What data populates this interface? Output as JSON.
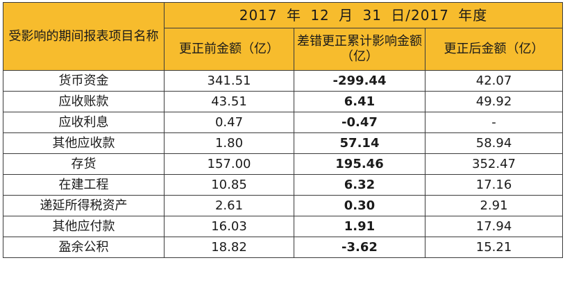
{
  "table": {
    "period_header": "2017 年 12 月 31 日/2017 年度",
    "row_label_header": "受影响的期间报表项目名称",
    "columns": [
      "更正前金额（亿）",
      "差错更正累计影响金额（亿）",
      "更正后金额（亿）"
    ],
    "rows": [
      {
        "name": "货币资金",
        "before": "341.51",
        "impact": "-299.44",
        "after": "42.07"
      },
      {
        "name": "应收账款",
        "before": "43.51",
        "impact": "6.41",
        "after": "49.92"
      },
      {
        "name": "应收利息",
        "before": "0.47",
        "impact": "-0.47",
        "after": "-"
      },
      {
        "name": "其他应收款",
        "before": "1.80",
        "impact": "57.14",
        "after": "58.94"
      },
      {
        "name": "存货",
        "before": "157.00",
        "impact": "195.46",
        "after": "352.47"
      },
      {
        "name": "在建工程",
        "before": "10.85",
        "impact": "6.32",
        "after": "17.16"
      },
      {
        "name": "递延所得税资产",
        "before": "2.61",
        "impact": "0.30",
        "after": "2.91"
      },
      {
        "name": "其他应付款",
        "before": "16.03",
        "impact": "1.91",
        "after": "17.94"
      },
      {
        "name": "盈余公积",
        "before": "18.82",
        "impact": "-3.62",
        "after": "15.21"
      }
    ]
  }
}
